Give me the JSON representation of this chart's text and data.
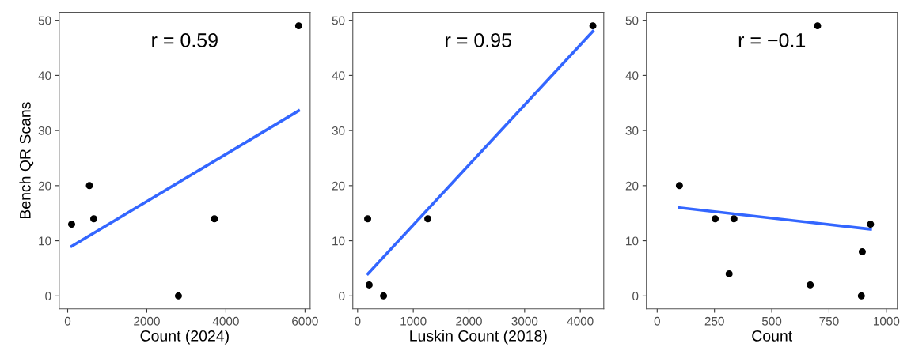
{
  "chart_data": [
    {
      "type": "scatter",
      "xlabel": "Count (2024)",
      "ylabel": "Bench QR Scans",
      "annotations": [
        "r = 0.59"
      ],
      "xlim": [
        -214,
        6130
      ],
      "xticks": [
        0,
        2000,
        4000,
        6000
      ],
      "ylim": [
        -2.35,
        51.45
      ],
      "yticks": [
        0,
        10,
        20,
        30,
        40,
        50
      ],
      "grid": false,
      "series": [
        {
          "marker": "circle",
          "color": "#000000",
          "x": [
            100,
            550,
            660,
            2800,
            3710,
            5840
          ],
          "values": [
            13,
            20,
            14,
            0,
            14,
            49
          ]
        },
        {
          "type": "line",
          "color": "#3366ff",
          "x": [
            100,
            5840
          ],
          "values": [
            9,
            33.6
          ]
        }
      ]
    },
    {
      "type": "scatter",
      "xlabel": "Luskin Count (2018)",
      "annotations": [
        "r = 0.95"
      ],
      "xlim": [
        -86,
        4421
      ],
      "xticks": [
        0,
        1000,
        2000,
        3000,
        4000
      ],
      "ylim": [
        -2.35,
        51.45
      ],
      "yticks": [
        0,
        10,
        20,
        30,
        40,
        50
      ],
      "grid": false,
      "series": [
        {
          "marker": "circle",
          "color": "#000000",
          "x": [
            181,
            208,
            466,
            1262,
            4226
          ],
          "values": [
            14,
            2,
            0,
            14,
            49
          ]
        },
        {
          "type": "line",
          "color": "#3366ff",
          "x": [
            185,
            4226
          ],
          "values": [
            4,
            48
          ]
        }
      ]
    },
    {
      "type": "scatter",
      "xlabel": "Count",
      "annotations": [
        "r = −0.1"
      ],
      "xlim": [
        -47,
        1048
      ],
      "xticks": [
        0,
        250,
        500,
        750,
        1000
      ],
      "ylim": [
        -2.35,
        51.45
      ],
      "yticks": [
        0,
        10,
        20,
        30,
        40,
        50
      ],
      "grid": false,
      "series": [
        {
          "marker": "circle",
          "color": "#000000",
          "x": [
            97,
            253,
            314,
            335,
            668,
            700,
            891,
            895,
            931
          ],
          "values": [
            20,
            14,
            4,
            14,
            2,
            49,
            0,
            8,
            13
          ]
        },
        {
          "type": "line",
          "color": "#3366ff",
          "x": [
            97,
            931
          ],
          "values": [
            16,
            12.1
          ]
        }
      ]
    }
  ]
}
